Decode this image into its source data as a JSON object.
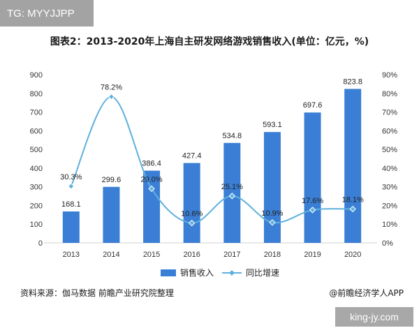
{
  "tag": "TG: MYYJJPP",
  "title": "图表2：2013-2020年上海自主研发网络游戏销售收入(单位：亿元，%)",
  "source": "资料来源：伽马数据 前瞻产业研究院整理",
  "credit": "@前瞻经济学人APP",
  "site": "king-jy.com",
  "chart_data": {
    "type": "bar",
    "categories": [
      "2013",
      "2014",
      "2015",
      "2016",
      "2017",
      "2018",
      "2019",
      "2020"
    ],
    "series": [
      {
        "name": "销售收入",
        "type": "bar",
        "axis": "left",
        "values": [
          168.1,
          299.6,
          386.4,
          427.4,
          534.8,
          593.1,
          697.6,
          823.8
        ],
        "labels": [
          "168.1",
          "299.6",
          "386.4",
          "427.4",
          "534.8",
          "593.1",
          "697.6",
          "823.8"
        ],
        "color": "#3a7fd5"
      },
      {
        "name": "同比增速",
        "type": "line",
        "axis": "right",
        "values": [
          30.3,
          78.2,
          29.0,
          10.6,
          25.1,
          10.9,
          17.6,
          18.1
        ],
        "labels": [
          "30.3%",
          "78.2%",
          "29.0%",
          "10.6%",
          "25.1%",
          "10.9%",
          "17.6%",
          "18.1%"
        ],
        "color": "#5fb0dc"
      }
    ],
    "y_left": {
      "ylim": [
        0,
        900
      ],
      "ticks": [
        "0",
        "100",
        "200",
        "300",
        "400",
        "500",
        "600",
        "700",
        "800",
        "900"
      ]
    },
    "y_right": {
      "ylim": [
        0,
        90
      ],
      "ticks": [
        "0%",
        "10%",
        "20%",
        "30%",
        "40%",
        "50%",
        "60%",
        "70%",
        "80%",
        "90%"
      ]
    },
    "grid": false,
    "legend": "bottom-center"
  }
}
